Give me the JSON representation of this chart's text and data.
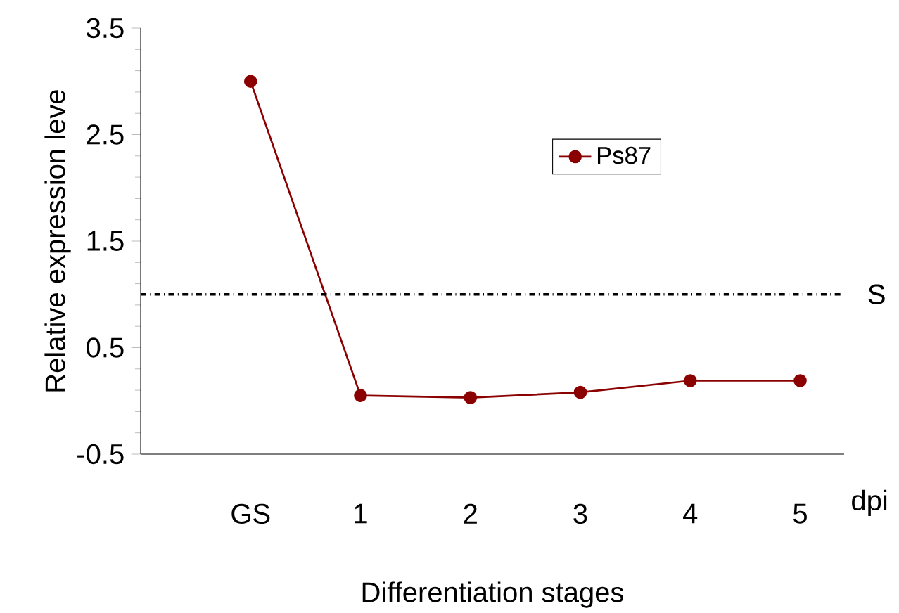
{
  "chart_data": {
    "type": "line",
    "xlabel": "Differentiation stages",
    "ylabel": "Relative expression leve",
    "categories": [
      "GS",
      "1",
      "2",
      "3",
      "4",
      "5"
    ],
    "series": [
      {
        "name": "Ps87",
        "color": "#8b0000",
        "values": [
          3.0,
          0.05,
          0.03,
          0.08,
          0.19,
          0.19
        ]
      }
    ],
    "ylim": [
      -0.5,
      3.5
    ],
    "yticks": [
      -0.5,
      0.5,
      1.5,
      2.5,
      3.5
    ],
    "ref_lines": [
      {
        "axis": "y",
        "value": 1.0,
        "label": "S",
        "color": "#000000",
        "line_style": "dashdot"
      }
    ],
    "annotations": [
      "dpi"
    ],
    "legend": "top right",
    "marker": "circle",
    "line_style": "solid",
    "grid": false
  }
}
